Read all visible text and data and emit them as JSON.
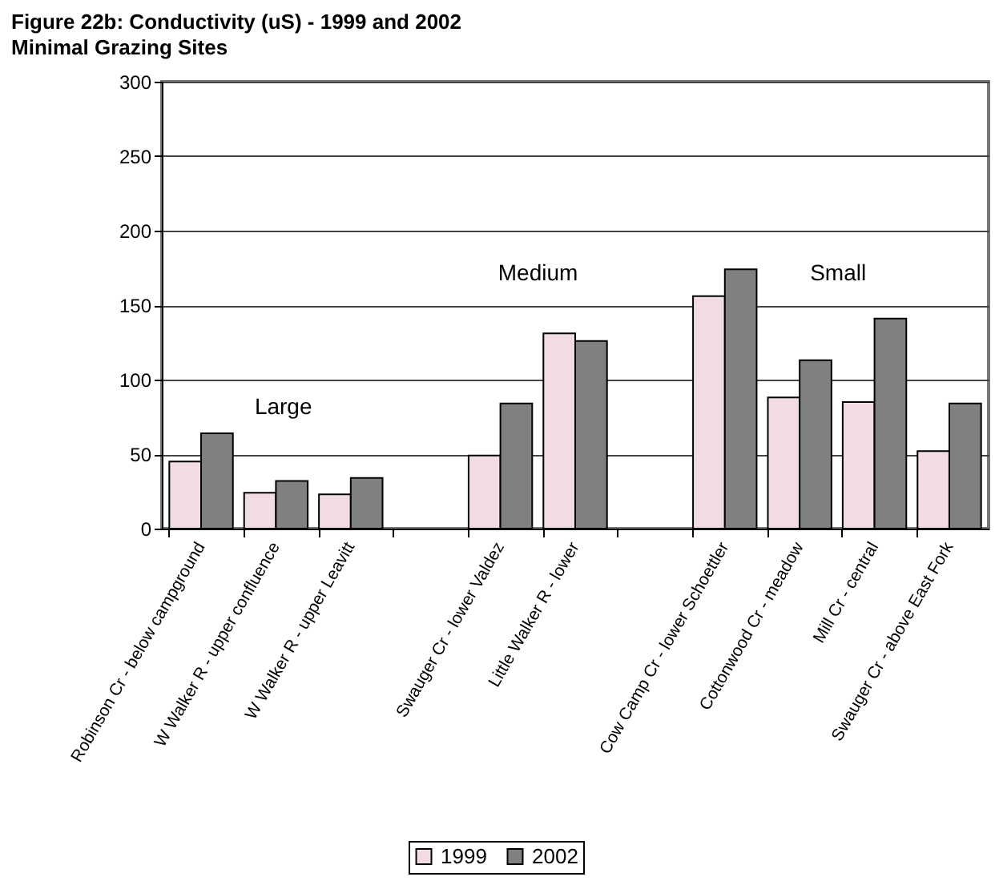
{
  "chart_data": {
    "type": "bar",
    "title": "Figure 22b: Conductivity (uS) - 1999 and 2002",
    "subtitle": "Minimal Grazing Sites",
    "categories": [
      "Robinson Cr - below campground",
      "W Walker R - upper confluence",
      "W Walker R - upper Leavitt",
      null,
      "Swauger Cr - lower Valdez",
      "Little Walker R - lower",
      null,
      "Cow Camp Cr - lower Schoettler",
      "Cottonwood Cr - meadow",
      "Mill Cr - central",
      "Swauger Cr - above East Fork"
    ],
    "series": [
      {
        "name": "1999",
        "color": "#f2dce4",
        "values": [
          45,
          24,
          23,
          null,
          49,
          131,
          null,
          156,
          88,
          85,
          52
        ]
      },
      {
        "name": "2002",
        "color": "#808080",
        "values": [
          64,
          32,
          34,
          null,
          84,
          126,
          null,
          174,
          113,
          141,
          84
        ]
      }
    ],
    "ylim": [
      0,
      300
    ],
    "yticks": [
      0,
      50,
      100,
      150,
      200,
      250,
      300
    ],
    "grid": "y",
    "legend": "bottom",
    "annotations": [
      "Large",
      "Medium",
      "Small"
    ]
  }
}
